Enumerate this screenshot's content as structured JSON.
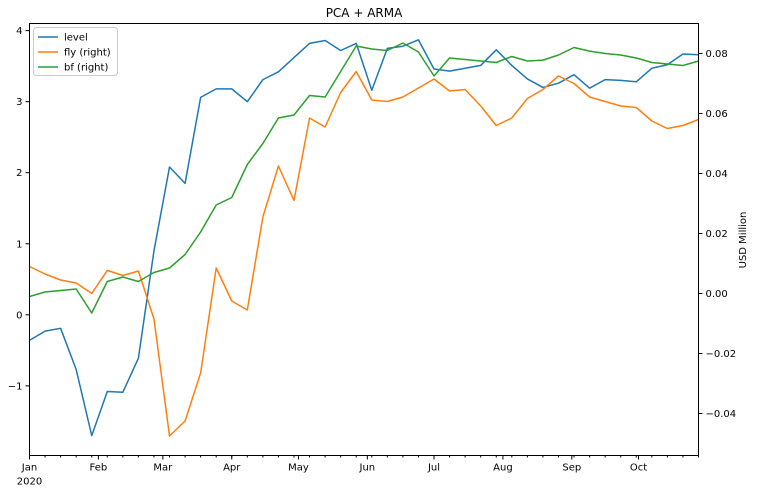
{
  "chart_data": {
    "type": "line",
    "title": "PCA + ARMA",
    "xlabel": "",
    "ylabel_left": "",
    "ylabel_right": "USD Million",
    "xlim": [
      "2020-01-01",
      "2020-10-28"
    ],
    "ylim_left": [
      -1.98,
      4.1
    ],
    "ylim_right": [
      -0.054,
      0.09
    ],
    "x_ticks": [
      {
        "date": "2020-01-01",
        "label": "Jan",
        "sublabel": "2020"
      },
      {
        "date": "2020-02-01",
        "label": "Feb"
      },
      {
        "date": "2020-03-01",
        "label": "Mar"
      },
      {
        "date": "2020-04-01",
        "label": "Apr"
      },
      {
        "date": "2020-05-01",
        "label": "May"
      },
      {
        "date": "2020-06-01",
        "label": "Jun"
      },
      {
        "date": "2020-07-01",
        "label": "Jul"
      },
      {
        "date": "2020-08-01",
        "label": "Aug"
      },
      {
        "date": "2020-09-01",
        "label": "Sep"
      },
      {
        "date": "2020-10-01",
        "label": "Oct"
      }
    ],
    "y_ticks_left": [
      -1,
      0,
      1,
      2,
      3,
      4
    ],
    "y_ticks_right": [
      -0.04,
      -0.02,
      0.0,
      0.02,
      0.04,
      0.06,
      0.08
    ],
    "y_tick_labels_right": [
      "−0.04",
      "−0.02",
      "0.00",
      "0.02",
      "0.04",
      "0.06",
      "0.08"
    ],
    "y_tick_labels_left": [
      "−1",
      "0",
      "1",
      "2",
      "3",
      "4"
    ],
    "legend_position": "top-left",
    "dates": [
      "2020-01-01",
      "2020-01-08",
      "2020-01-15",
      "2020-01-22",
      "2020-01-29",
      "2020-02-05",
      "2020-02-12",
      "2020-02-19",
      "2020-02-26",
      "2020-03-04",
      "2020-03-11",
      "2020-03-18",
      "2020-03-25",
      "2020-04-01",
      "2020-04-08",
      "2020-04-15",
      "2020-04-22",
      "2020-04-29",
      "2020-05-06",
      "2020-05-13",
      "2020-05-20",
      "2020-05-27",
      "2020-06-03",
      "2020-06-10",
      "2020-06-17",
      "2020-06-24",
      "2020-07-01",
      "2020-07-08",
      "2020-07-15",
      "2020-07-22",
      "2020-07-29",
      "2020-08-05",
      "2020-08-12",
      "2020-08-19",
      "2020-08-26",
      "2020-09-02",
      "2020-09-09",
      "2020-09-16",
      "2020-09-23",
      "2020-09-30",
      "2020-10-07",
      "2020-10-14",
      "2020-10-21",
      "2020-10-28"
    ],
    "series": [
      {
        "name": "level",
        "axis": "left",
        "color": "#1f77b4",
        "values": [
          -0.36,
          -0.23,
          -0.19,
          -0.77,
          -1.7,
          -1.08,
          -1.09,
          -0.61,
          0.9,
          2.08,
          1.85,
          3.06,
          3.18,
          3.18,
          3.0,
          3.31,
          3.42,
          3.62,
          3.82,
          3.86,
          3.72,
          3.82,
          3.16,
          3.75,
          3.78,
          3.87,
          3.46,
          3.43,
          3.47,
          3.51,
          3.73,
          3.51,
          3.32,
          3.2,
          3.26,
          3.38,
          3.19,
          3.31,
          3.3,
          3.28,
          3.47,
          3.52,
          3.67,
          3.66
        ]
      },
      {
        "name": "fly (right)",
        "axis": "right",
        "color": "#ff7f0e",
        "values": [
          0.009,
          0.0065,
          0.0045,
          0.0035,
          0.0,
          0.0077,
          0.006,
          0.0075,
          -0.0085,
          -0.0475,
          -0.0425,
          -0.0265,
          0.0085,
          -0.0025,
          -0.0055,
          0.0255,
          0.0425,
          0.031,
          0.0585,
          0.0555,
          0.067,
          0.074,
          0.0645,
          0.064,
          0.0655,
          0.0685,
          0.0715,
          0.0675,
          0.068,
          0.0625,
          0.056,
          0.0585,
          0.065,
          0.068,
          0.0725,
          0.07,
          0.0655,
          0.064,
          0.0625,
          0.062,
          0.0575,
          0.055,
          0.056,
          0.058
        ]
      },
      {
        "name": "bf (right)",
        "axis": "right",
        "color": "#2ca02c",
        "values": [
          -0.001,
          0.0005,
          0.001,
          0.0015,
          -0.0065,
          0.004,
          0.0055,
          0.004,
          0.007,
          0.0085,
          0.013,
          0.0205,
          0.0295,
          0.032,
          0.043,
          0.05,
          0.0585,
          0.0595,
          0.066,
          0.0655,
          0.074,
          0.0825,
          0.0815,
          0.081,
          0.0835,
          0.0805,
          0.0725,
          0.0785,
          0.078,
          0.0775,
          0.077,
          0.079,
          0.0775,
          0.0778,
          0.0795,
          0.082,
          0.0808,
          0.08,
          0.0795,
          0.0785,
          0.077,
          0.0765,
          0.076,
          0.0775
        ]
      }
    ]
  }
}
